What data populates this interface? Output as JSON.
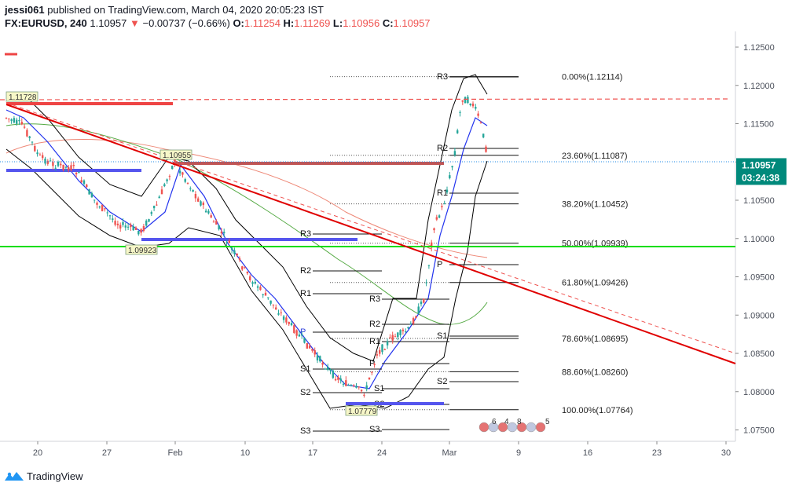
{
  "header": {
    "user": "jessi061",
    "published_text": "published on TradingView.com, March 04, 2020 20:05:23 IST",
    "symbol": "FX:EURUSD, 240",
    "last": "1.10957",
    "change": "−0.00737 (−0.66%)",
    "o_label": "O:",
    "o": "1.11254",
    "h_label": "H:",
    "h": "1.11269",
    "l_label": "L:",
    "l": "1.10956",
    "c_label": "C:",
    "c": "1.10957"
  },
  "footer": {
    "brand": "TradingView"
  },
  "colors": {
    "up": "#26a69a",
    "down": "#ef5350",
    "trendline": "#e00000",
    "level": "#00dd00",
    "fast_ma": "#2233ee",
    "band": "#000000",
    "slow_ma": "#55aa44",
    "mid_ma": "#ee8877",
    "price_tag": "#00897b",
    "pivot_red": "#ee4444",
    "pivot_blue": "#5555ee"
  },
  "chart_data": {
    "type": "candlestick",
    "price_axis": {
      "ticks": [
        "1.12500",
        "1.12000",
        "1.11500",
        "1.11000",
        "1.10500",
        "1.10000",
        "1.09500",
        "1.09000",
        "1.08500",
        "1.08000",
        "1.07500"
      ],
      "range": [
        1.0728,
        1.1275
      ]
    },
    "time_axis": {
      "ticks": [
        "20",
        "27",
        "Feb",
        "10",
        "17",
        "24",
        "Mar",
        "9",
        "16",
        "23",
        "30"
      ]
    },
    "last_price": "1.10957",
    "countdown": "03:24:38",
    "fib_levels": [
      {
        "label": "0.00%(1.12114)",
        "price": 1.12114
      },
      {
        "label": "23.60%(1.11087)",
        "price": 1.11087
      },
      {
        "label": "38.20%(1.10452)",
        "price": 1.10452
      },
      {
        "label": "50.00%(1.09939)",
        "price": 1.09939
      },
      {
        "label": "61.80%(1.09426)",
        "price": 1.09426
      },
      {
        "label": "78.60%(1.08695)",
        "price": 1.08695
      },
      {
        "label": "88.60%(1.08260)",
        "price": 1.0826
      },
      {
        "label": "100.00%(1.07764)",
        "price": 1.07764
      }
    ],
    "price_labels": [
      {
        "text": "1.11728",
        "price": 1.11728
      },
      {
        "text": "1.10955",
        "price": 1.10955
      },
      {
        "text": "1.09923",
        "price": 1.09923
      },
      {
        "text": "1.07779",
        "price": 1.07779
      }
    ],
    "pivot_labels": {
      "week1": [
        "R3",
        "R2",
        "R1",
        "P",
        "S1",
        "S2",
        "S3"
      ],
      "week2": [
        "R3",
        "R2",
        "R1",
        "P",
        "S1",
        "S2",
        "S3"
      ],
      "week3": [
        "R3",
        "R2",
        "R1",
        "P",
        "S1",
        "S2"
      ]
    },
    "events": [
      "6",
      "4",
      "8",
      "5"
    ]
  }
}
